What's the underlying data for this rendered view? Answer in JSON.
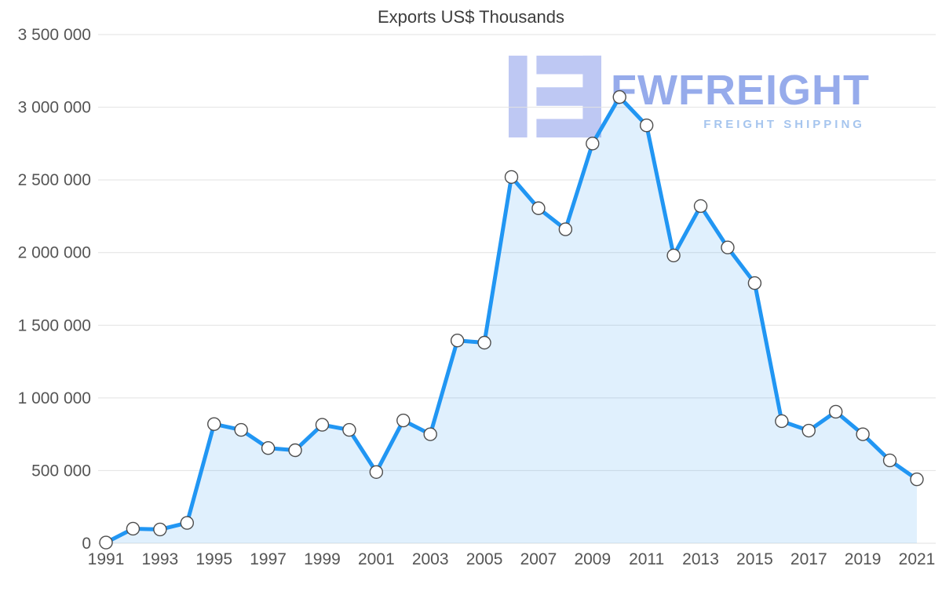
{
  "chart_data": {
    "type": "area",
    "title": "Exports US$ Thousands",
    "x": [
      1991,
      1992,
      1993,
      1994,
      1995,
      1996,
      1997,
      1998,
      1999,
      2000,
      2001,
      2002,
      2003,
      2004,
      2005,
      2006,
      2007,
      2008,
      2009,
      2010,
      2011,
      2012,
      2013,
      2014,
      2015,
      2016,
      2017,
      2018,
      2019,
      2020,
      2021
    ],
    "series": [
      {
        "name": "Exports US$ Thousands",
        "values": [
          5000,
          100000,
          95000,
          140000,
          820000,
          780000,
          655000,
          640000,
          815000,
          780000,
          490000,
          845000,
          750000,
          1395000,
          1380000,
          2520000,
          2305000,
          2160000,
          2750000,
          3070000,
          2875000,
          1980000,
          2320000,
          2035000,
          1790000,
          840000,
          775000,
          905000,
          750000,
          570000,
          440000
        ]
      }
    ],
    "xlabel": "",
    "ylabel": "",
    "ylim": [
      0,
      3500000
    ],
    "ytick_values": [
      0,
      500000,
      1000000,
      1500000,
      2000000,
      2500000,
      3000000,
      3500000
    ],
    "ytick_labels": [
      "0",
      "500 000",
      "1 000 000",
      "1 500 000",
      "2 000 000",
      "2 500 000",
      "3 000 000",
      "3 500 000"
    ],
    "xtick_labels": [
      "1991",
      "1993",
      "1995",
      "1997",
      "1999",
      "2001",
      "2003",
      "2005",
      "2007",
      "2009",
      "2011",
      "2013",
      "2015",
      "2017",
      "2019",
      "2021"
    ],
    "grid": "horizontal",
    "legend": "none",
    "colors": {
      "line": "#2196f3",
      "area_fill": "rgba(33,150,243,0.14)",
      "marker_fill": "#ffffff",
      "marker_stroke": "#4d4d4d",
      "grid": "#e2e2e2",
      "tick_label": "#555555",
      "title": "#3d3d3d",
      "background": "#ffffff"
    }
  },
  "watermark": {
    "brand": "FWFREIGHT",
    "tagline": "FREIGHT SHIPPING",
    "brand_color": "#8ba3e9",
    "tagline_color": "#a6c5ee",
    "logo_color": "#b7c3f2"
  }
}
